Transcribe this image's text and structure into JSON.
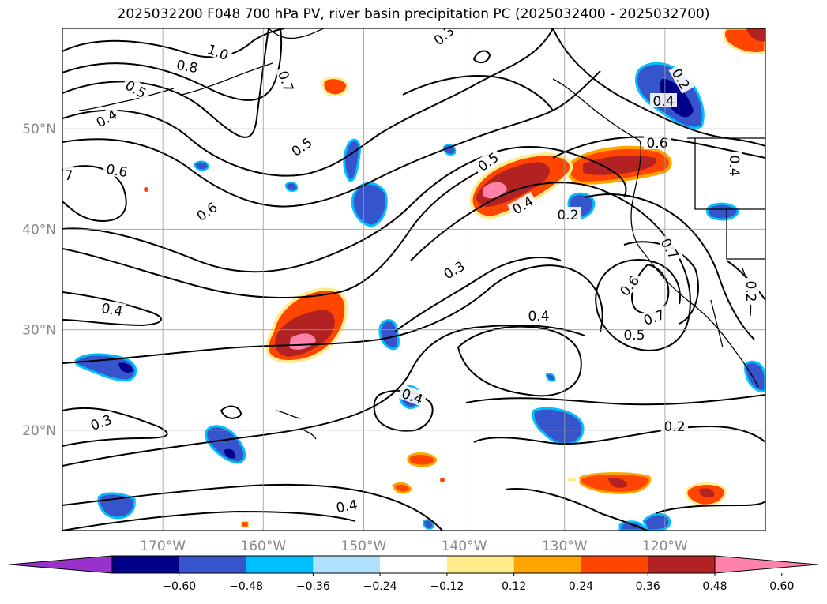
{
  "title": "2025032200 F048 700 hPa PV, river basin precipitation PC (2025032400 - 2025032700)",
  "map": {
    "lon_range": [
      -180,
      -110
    ],
    "lat_range": [
      10,
      60
    ],
    "lat_ticks": [
      {
        "value": 50,
        "label": "50°N"
      },
      {
        "value": 40,
        "label": "40°N"
      },
      {
        "value": 30,
        "label": "30°N"
      },
      {
        "value": 20,
        "label": "20°N"
      }
    ],
    "lon_ticks": [
      {
        "value": -170,
        "label": "170°W"
      },
      {
        "value": -160,
        "label": "160°W"
      },
      {
        "value": -150,
        "label": "150°W"
      },
      {
        "value": -140,
        "label": "140°W"
      },
      {
        "value": -130,
        "label": "130°W"
      },
      {
        "value": -120,
        "label": "120°W"
      }
    ],
    "grid": true
  },
  "contour_labels": [
    "1.0",
    "0.8",
    "0.5",
    "0.7",
    "0.4",
    "0.6",
    "7",
    "0.5",
    "0.6",
    "0.5",
    "0.4",
    "0.2",
    "0.3",
    "0.4",
    "0.3",
    "0.4",
    "0.4",
    "0.6",
    "0.7",
    "0.5",
    "0.2",
    "0.4",
    "0.2",
    "0.4",
    "0.3",
    "0.2",
    "0.6",
    "0.7",
    "0.4"
  ],
  "colorbar": {
    "ticks": [
      "−0.60",
      "−0.48",
      "−0.36",
      "−0.24",
      "−0.12",
      "0.12",
      "0.24",
      "0.36",
      "0.48",
      "0.60"
    ],
    "colors": [
      "#9932cc",
      "#00008b",
      "#3655cc",
      "#00bfff",
      "#b0e2ff",
      "#ffffff",
      "#ffec8b",
      "#ffa500",
      "#ff4500",
      "#b22222",
      "#ff82ab"
    ],
    "extend": "both"
  }
}
